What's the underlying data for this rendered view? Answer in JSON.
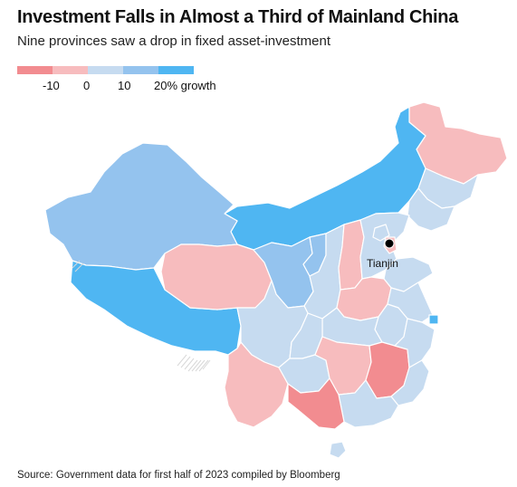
{
  "title": "Investment Falls in Almost a Third of Mainland China",
  "subtitle": "Nine provinces saw a drop in fixed asset-investment",
  "legend": {
    "labels": [
      "-10",
      "0",
      "10",
      "20% growth"
    ],
    "bins": [
      "#f28c90",
      "#f7bcbe",
      "#c6dbf0",
      "#94c3ee",
      "#4fb6f2"
    ]
  },
  "colors": {
    "strong_decline": "#f28c90",
    "mild_decline": "#f7bcbe",
    "low_growth": "#c6dbf0",
    "mid_growth": "#94c3ee",
    "high_growth": "#4fb6f2",
    "borders": "#ffffff",
    "marker": "#000000"
  },
  "map": {
    "marker_label": "Tianjin",
    "regions": [
      {
        "name": "Heilongjiang",
        "category": "mild_decline"
      },
      {
        "name": "Jilin",
        "category": "low_growth"
      },
      {
        "name": "Liaoning",
        "category": "low_growth"
      },
      {
        "name": "Inner Mongolia",
        "category": "high_growth"
      },
      {
        "name": "Xinjiang",
        "category": "mid_growth"
      },
      {
        "name": "Tibet",
        "category": "high_growth"
      },
      {
        "name": "Qinghai",
        "category": "mild_decline"
      },
      {
        "name": "Gansu",
        "category": "mid_growth"
      },
      {
        "name": "Ningxia",
        "category": "mid_growth"
      },
      {
        "name": "Shaanxi",
        "category": "low_growth"
      },
      {
        "name": "Shanxi",
        "category": "mild_decline"
      },
      {
        "name": "Hebei",
        "category": "low_growth"
      },
      {
        "name": "Beijing",
        "category": "low_growth"
      },
      {
        "name": "Tianjin",
        "category": "mild_decline"
      },
      {
        "name": "Shandong",
        "category": "low_growth"
      },
      {
        "name": "Henan",
        "category": "mild_decline"
      },
      {
        "name": "Jiangsu",
        "category": "low_growth"
      },
      {
        "name": "Anhui",
        "category": "low_growth"
      },
      {
        "name": "Hubei",
        "category": "low_growth"
      },
      {
        "name": "Sichuan",
        "category": "low_growth"
      },
      {
        "name": "Chongqing",
        "category": "low_growth"
      },
      {
        "name": "Yunnan",
        "category": "mild_decline"
      },
      {
        "name": "Guizhou",
        "category": "low_growth"
      },
      {
        "name": "Hunan",
        "category": "mild_decline"
      },
      {
        "name": "Jiangxi",
        "category": "strong_decline"
      },
      {
        "name": "Zhejiang",
        "category": "low_growth"
      },
      {
        "name": "Shanghai",
        "category": "high_growth"
      },
      {
        "name": "Fujian",
        "category": "low_growth"
      },
      {
        "name": "Guangdong",
        "category": "low_growth"
      },
      {
        "name": "Guangxi",
        "category": "strong_decline"
      },
      {
        "name": "Hainan",
        "category": "low_growth"
      }
    ]
  },
  "source": "Source: Government data for first half of 2023 compiled by Bloomberg"
}
